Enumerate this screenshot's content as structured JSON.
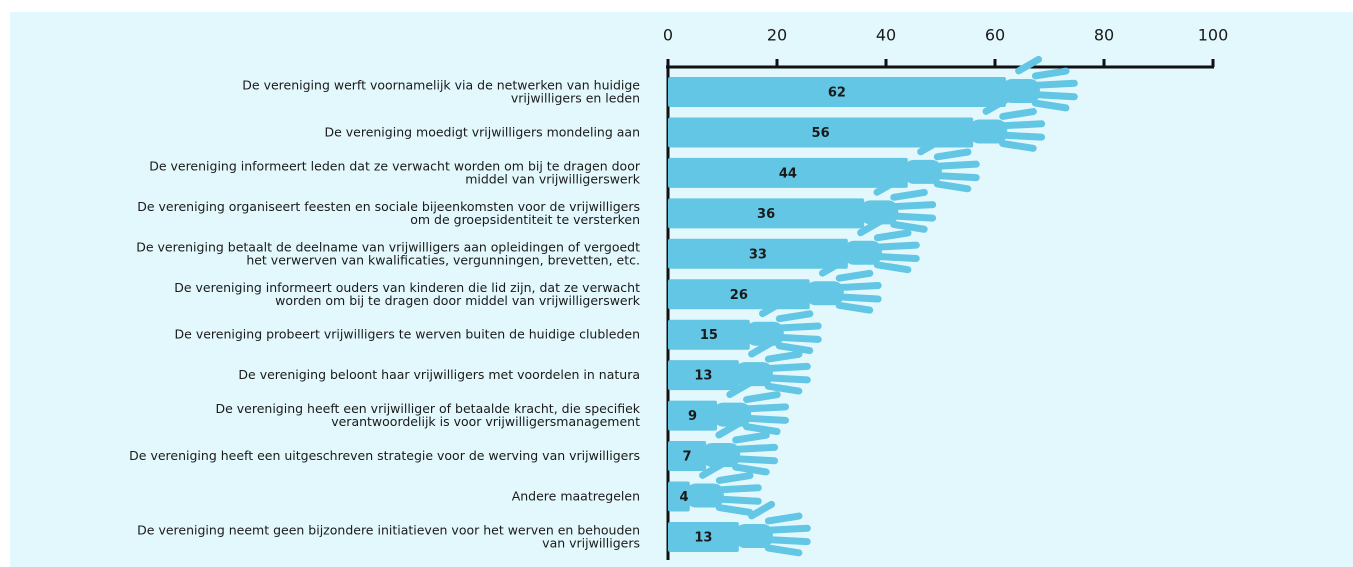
{
  "chart_data": {
    "type": "bar",
    "orientation": "horizontal",
    "categories": [
      "De vereniging werft voornamelijk via de netwerken van huidige\nvrijwilligers en leden",
      "De vereniging moedigt vrijwilligers mondeling aan",
      "De vereniging informeert leden dat ze verwacht worden om bij te dragen door\nmiddel van vrijwilligerswerk",
      "De vereniging organiseert feesten en sociale bijeenkomsten voor de vrijwilligers\nom de groepsidentiteit te versterken",
      "De vereniging betaalt de deelname van vrijwilligers aan opleidingen of vergoedt\nhet verwerven van kwalificaties, vergunningen, brevetten, etc.",
      "De vereniging informeert ouders van kinderen die lid zijn, dat ze verwacht\nworden om bij te dragen door middel van vrijwilligerswerk",
      "De vereniging probeert vrijwilligers te werven buiten de huidige clubleden",
      "De vereniging beloont haar vrijwilligers met voordelen in natura",
      "De vereniging heeft een vrijwilliger of betaalde kracht, die specifiek\nverantwoordelijk is voor vrijwilligersmanagement",
      "De vereniging heeft een uitgeschreven strategie voor de werving van vrijwilligers",
      "Andere maatregelen",
      "De vereniging neemt geen bijzondere initiatieven voor het werven en behouden\nvan vrijwilligers"
    ],
    "values": [
      62,
      56,
      44,
      36,
      33,
      26,
      15,
      13,
      9,
      7,
      4,
      13
    ],
    "color": "#62c6e4",
    "xlim": [
      0,
      100
    ],
    "xticks": [
      0,
      20,
      40,
      60,
      80,
      100
    ]
  }
}
